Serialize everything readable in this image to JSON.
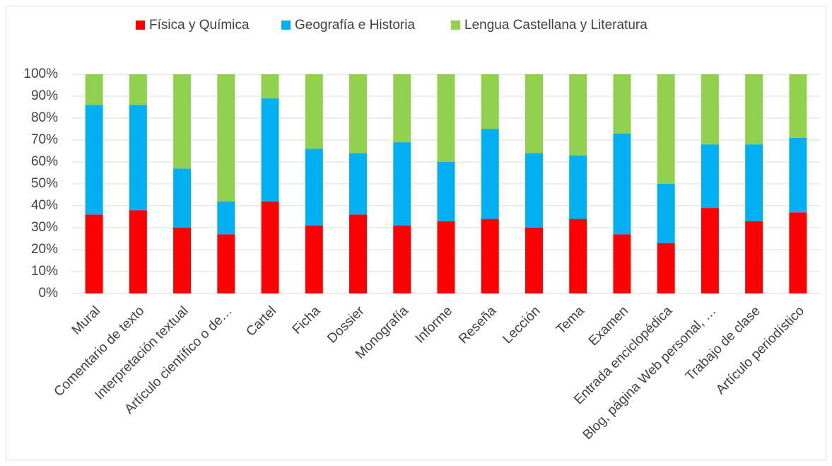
{
  "chart_data": {
    "type": "stacked_bar_100",
    "categories": [
      "Mural",
      "Comentario de texto",
      "Interpretación textual",
      "Artículo científico o de…",
      "Cartel",
      "Ficha",
      "Dossier",
      "Monografía",
      "Informe",
      "Reseña",
      "Lección",
      "Tema",
      "Examen",
      "Entrada enciclopédica",
      "Blog, página Web personal, …",
      "Trabajo de clase",
      "Artículo periodístico"
    ],
    "series": [
      {
        "name": "Física y Química",
        "color": "#ff0000",
        "values": [
          36,
          38,
          30,
          27,
          42,
          31,
          36,
          31,
          33,
          34,
          30,
          34,
          27,
          23,
          39,
          33,
          37
        ]
      },
      {
        "name": "Geografía e Historia",
        "color": "#00b0f0",
        "values": [
          50,
          48,
          27,
          15,
          47,
          35,
          28,
          38,
          27,
          41,
          34,
          29,
          46,
          27,
          29,
          35,
          34
        ]
      },
      {
        "name": "Lengua Castellana y Literatura",
        "color": "#92d050",
        "values": [
          14,
          14,
          43,
          58,
          11,
          34,
          36,
          31,
          40,
          25,
          36,
          37,
          27,
          50,
          32,
          32,
          29
        ]
      }
    ],
    "ylim": [
      0,
      100
    ],
    "yticks": [
      {
        "value": 0,
        "label": "0%"
      },
      {
        "value": 10,
        "label": "10%"
      },
      {
        "value": 20,
        "label": "20%"
      },
      {
        "value": 30,
        "label": "30%"
      },
      {
        "value": 40,
        "label": "40%"
      },
      {
        "value": 50,
        "label": "50%"
      },
      {
        "value": 60,
        "label": "60%"
      },
      {
        "value": 70,
        "label": "70%"
      },
      {
        "value": 80,
        "label": "80%"
      },
      {
        "value": 90,
        "label": "90%"
      },
      {
        "value": 100,
        "label": "100%"
      }
    ],
    "grid": true,
    "legend": "top"
  }
}
